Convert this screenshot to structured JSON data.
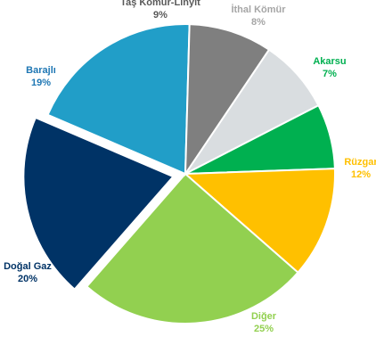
{
  "chart_data": {
    "type": "pie",
    "title": "",
    "slices": [
      {
        "label": "İthal Kömür",
        "pct_label": "8%",
        "value": 8,
        "color": "#d9dde0",
        "label_color": "#a6a6a6"
      },
      {
        "label": "Akarsu",
        "pct_label": "7%",
        "value": 7,
        "color": "#00b050",
        "label_color": "#00b050"
      },
      {
        "label": "Rüzgar",
        "pct_label": "12%",
        "value": 12,
        "color": "#ffc000",
        "label_color": "#ffc000"
      },
      {
        "label": "Diğer",
        "pct_label": "25%",
        "value": 25,
        "color": "#92d050",
        "label_color": "#92d050"
      },
      {
        "label": "Doğal Gaz",
        "pct_label": "20%",
        "value": 20,
        "color": "#003366",
        "label_color": "#003366",
        "exploded": true
      },
      {
        "label": "Barajlı",
        "pct_label": "19%",
        "value": 19,
        "color": "#219ec8",
        "label_color": "#1f77b4"
      },
      {
        "label": "Taş Kömür-Linyit",
        "pct_label": "9%",
        "value": 9,
        "color": "#7f7f7f",
        "label_color": "#595959"
      }
    ]
  }
}
